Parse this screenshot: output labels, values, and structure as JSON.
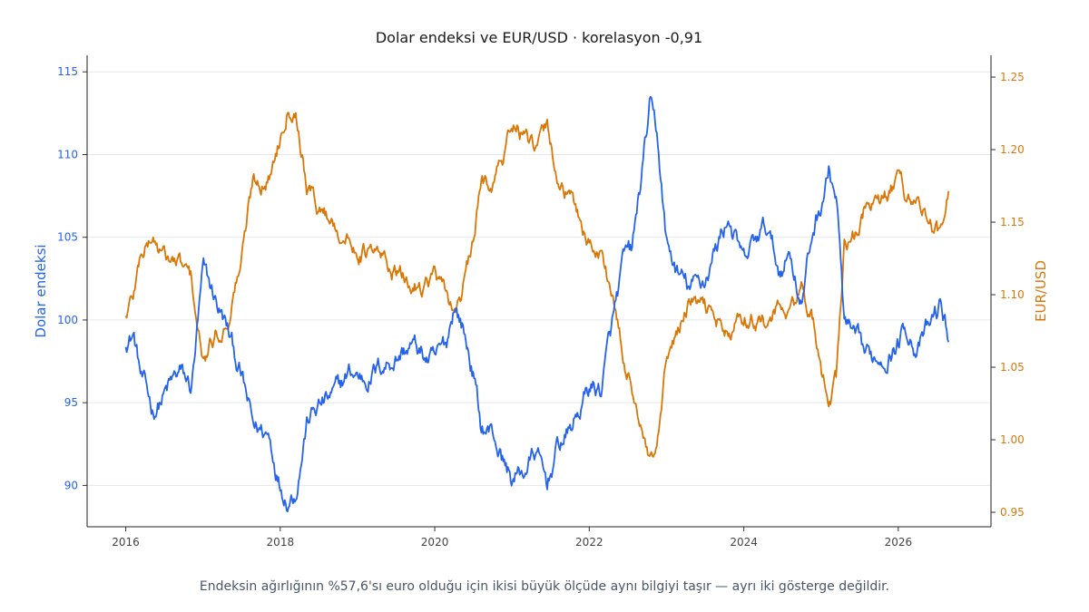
{
  "chart_data": {
    "type": "line",
    "title": "Dolar endeksi ve EUR/USD · korelasyon -0,91",
    "caption": "Endeksin ağırlığının %57,6'sı euro olduğu için ikisi büyük ölçüde aynı bilgiyi taşır — ayrı iki gösterge değildir.",
    "xlabel": "",
    "x_range": [
      2015.5,
      2027.2
    ],
    "x_ticks": [
      "2016",
      "2018",
      "2020",
      "2022",
      "2024",
      "2026"
    ],
    "grid": "horizontal",
    "legend": "none",
    "left_axis": {
      "label": "Dolar endeksi",
      "range": [
        87.5,
        116
      ],
      "ticks": [
        "90",
        "95",
        "100",
        "105",
        "110",
        "115"
      ],
      "color": "#2563eb"
    },
    "right_axis": {
      "label": "EUR/USD",
      "range": [
        0.94,
        1.265
      ],
      "ticks": [
        "0.95",
        "1.00",
        "1.05",
        "1.10",
        "1.15",
        "1.20",
        "1.25"
      ],
      "color": "#d97706"
    },
    "series": [
      {
        "axis": "left",
        "color": "#2563eb",
        "x": [
          2016.0,
          2016.1,
          2016.2,
          2016.35,
          2016.5,
          2016.7,
          2016.85,
          2017.0,
          2017.15,
          2017.3,
          2017.5,
          2017.65,
          2017.85,
          2018.0,
          2018.1,
          2018.2,
          2018.35,
          2018.5,
          2018.7,
          2018.9,
          2019.1,
          2019.3,
          2019.5,
          2019.7,
          2019.9,
          2020.0,
          2020.15,
          2020.25,
          2020.35,
          2020.5,
          2020.6,
          2020.75,
          2020.9,
          2021.0,
          2021.15,
          2021.3,
          2021.45,
          2021.6,
          2021.75,
          2021.9,
          2022.0,
          2022.15,
          2022.3,
          2022.45,
          2022.55,
          2022.7,
          2022.78,
          2022.88,
          2023.0,
          2023.15,
          2023.3,
          2023.5,
          2023.65,
          2023.8,
          2024.0,
          2024.15,
          2024.3,
          2024.45,
          2024.6,
          2024.75,
          2024.9,
          2025.0,
          2025.1,
          2025.2,
          2025.3,
          2025.45,
          2025.6,
          2025.75,
          2025.9,
          2026.0,
          2026.1,
          2026.25,
          2026.4,
          2026.55,
          2026.65
        ],
        "values": [
          98.8,
          99.2,
          96.5,
          94.5,
          95.5,
          96.8,
          95.8,
          102.8,
          101.3,
          99.6,
          96.5,
          93.5,
          93.1,
          90.2,
          89.4,
          89.8,
          94.0,
          94.8,
          95.4,
          96.8,
          96.5,
          97.2,
          97.8,
          98.5,
          97.6,
          97.4,
          98.5,
          101.0,
          99.8,
          96.8,
          93.5,
          93.2,
          91.3,
          90.4,
          90.8,
          92.0,
          90.1,
          92.4,
          93.3,
          94.8,
          96.0,
          95.8,
          99.7,
          103.5,
          104.0,
          109.5,
          112.8,
          111.0,
          104.5,
          102.7,
          101.8,
          102.5,
          104.5,
          106.3,
          103.3,
          104.8,
          105.6,
          103.0,
          104.2,
          101.0,
          105.5,
          107.0,
          109.0,
          107.4,
          99.8,
          98.5,
          97.6,
          97.8,
          98.2,
          98.7,
          99.7,
          98.2,
          99.5,
          100.9,
          99.0
        ]
      },
      {
        "axis": "right",
        "color": "#d97706",
        "x": [
          2016.0,
          2016.1,
          2016.2,
          2016.35,
          2016.5,
          2016.7,
          2016.85,
          2017.0,
          2017.15,
          2017.3,
          2017.5,
          2017.65,
          2017.85,
          2018.0,
          2018.1,
          2018.2,
          2018.35,
          2018.5,
          2018.7,
          2018.9,
          2019.1,
          2019.3,
          2019.5,
          2019.7,
          2019.9,
          2020.0,
          2020.15,
          2020.25,
          2020.35,
          2020.5,
          2020.6,
          2020.75,
          2020.9,
          2021.0,
          2021.15,
          2021.3,
          2021.45,
          2021.6,
          2021.75,
          2021.9,
          2022.0,
          2022.15,
          2022.3,
          2022.45,
          2022.55,
          2022.7,
          2022.78,
          2022.88,
          2023.0,
          2023.15,
          2023.3,
          2023.5,
          2023.65,
          2023.8,
          2024.0,
          2024.15,
          2024.3,
          2024.45,
          2024.6,
          2024.75,
          2024.9,
          2025.0,
          2025.1,
          2025.2,
          2025.3,
          2025.45,
          2025.6,
          2025.75,
          2025.9,
          2026.0,
          2026.1,
          2026.25,
          2026.4,
          2026.55,
          2026.65
        ],
        "values": [
          1.085,
          1.1,
          1.13,
          1.14,
          1.125,
          1.12,
          1.11,
          1.05,
          1.07,
          1.08,
          1.125,
          1.18,
          1.18,
          1.21,
          1.235,
          1.23,
          1.175,
          1.16,
          1.15,
          1.135,
          1.13,
          1.125,
          1.115,
          1.105,
          1.11,
          1.115,
          1.095,
          1.09,
          1.1,
          1.135,
          1.175,
          1.18,
          1.195,
          1.22,
          1.21,
          1.195,
          1.215,
          1.18,
          1.165,
          1.15,
          1.135,
          1.13,
          1.1,
          1.05,
          1.04,
          1.0,
          0.98,
          0.99,
          1.05,
          1.075,
          1.095,
          1.09,
          1.085,
          1.07,
          1.085,
          1.085,
          1.08,
          1.09,
          1.085,
          1.105,
          1.08,
          1.04,
          1.03,
          1.04,
          1.135,
          1.14,
          1.165,
          1.16,
          1.17,
          1.18,
          1.17,
          1.165,
          1.15,
          1.14,
          1.165
        ]
      }
    ]
  }
}
